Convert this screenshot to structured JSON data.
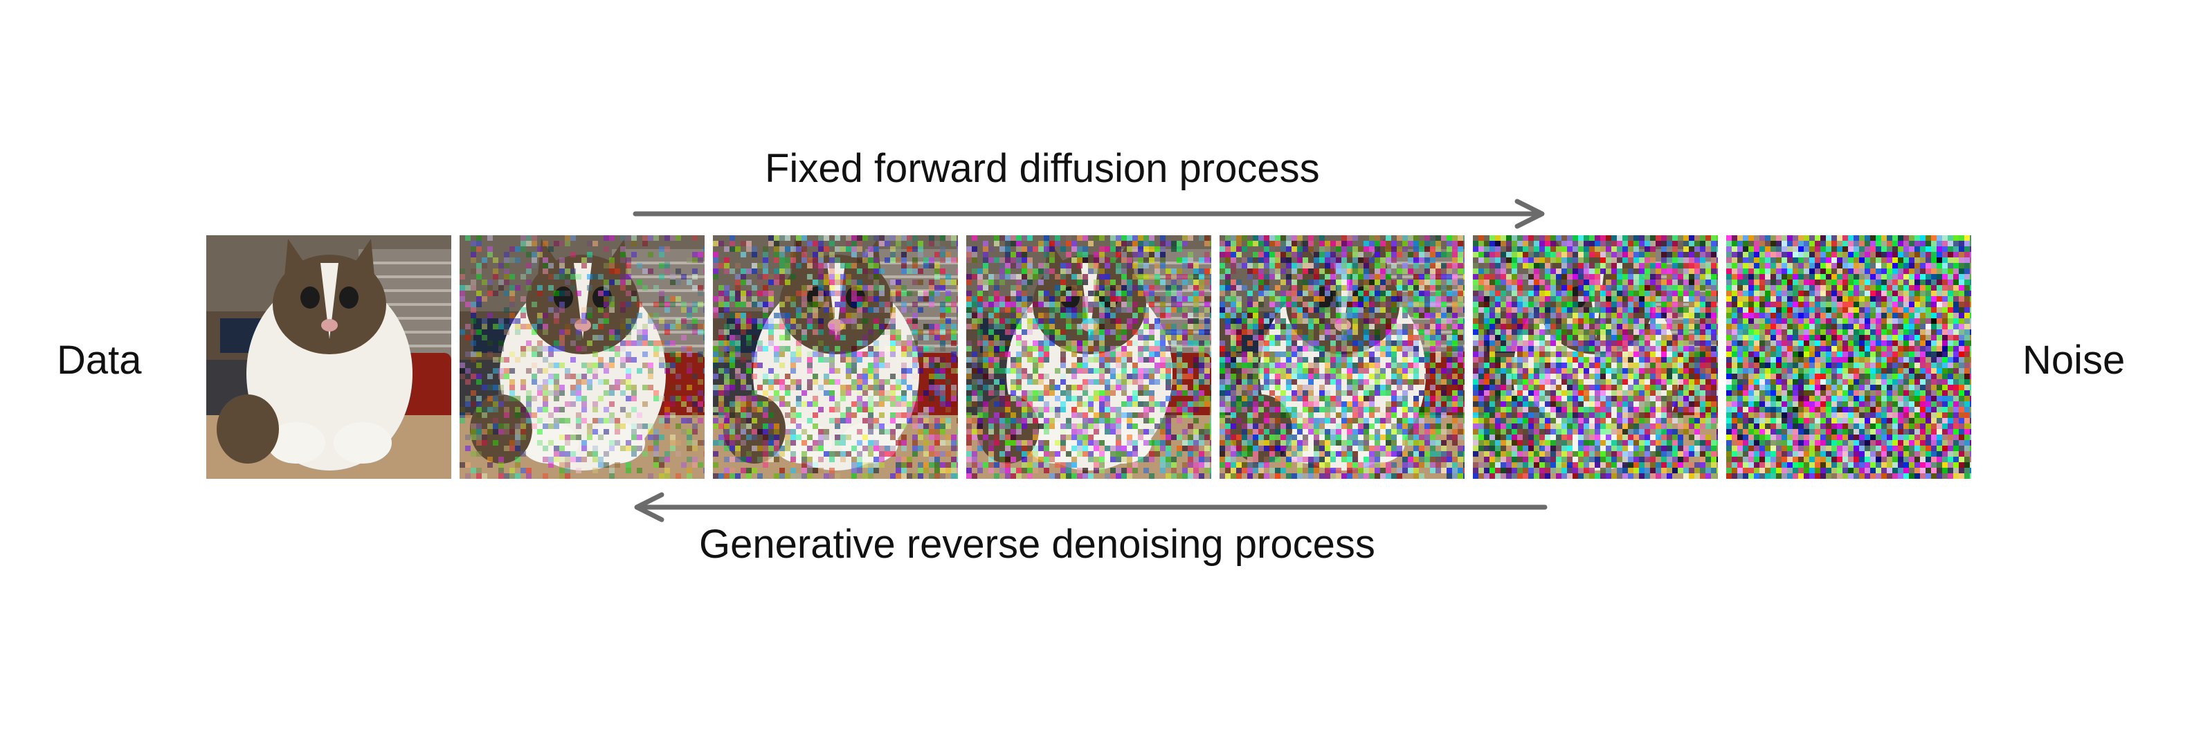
{
  "labels": {
    "data": "Data",
    "noise": "Noise",
    "forward": "Fixed forward diffusion process",
    "reverse": "Generative reverse denoising process"
  },
  "frames": [
    {
      "id": "frame-0",
      "noise_level": 0.0
    },
    {
      "id": "frame-1",
      "noise_level": 0.35
    },
    {
      "id": "frame-2",
      "noise_level": 0.5
    },
    {
      "id": "frame-3",
      "noise_level": 0.62
    },
    {
      "id": "frame-4",
      "noise_level": 0.74
    },
    {
      "id": "frame-5",
      "noise_level": 0.87
    },
    {
      "id": "frame-6",
      "noise_level": 1.0
    }
  ],
  "colors": {
    "arrow": "#6b6b6b",
    "text": "#111111",
    "background": "#ffffff"
  }
}
